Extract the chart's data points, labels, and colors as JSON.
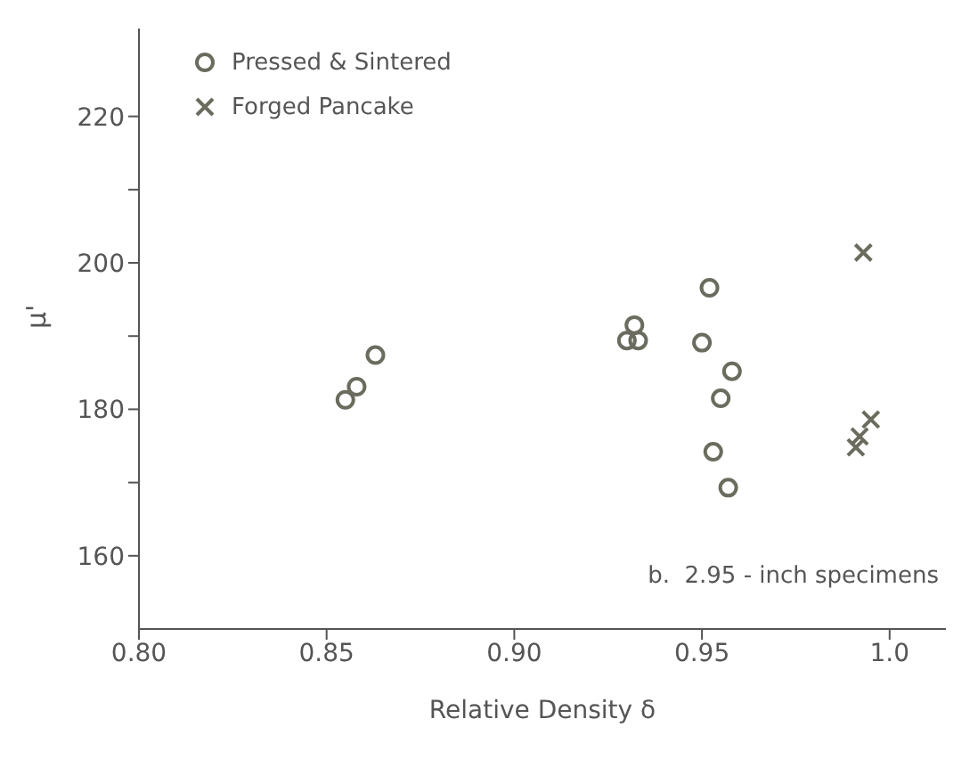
{
  "chart_data": {
    "type": "scatter",
    "xlabel": "Relative Density δ",
    "ylabel": "μ'",
    "series": [
      {
        "name": "Pressed & Sintered",
        "color": "#6b6b5e",
        "marker": "circle",
        "x": [
          0.855,
          0.858,
          0.863,
          0.93,
          0.932,
          0.933,
          0.952,
          0.95,
          0.958,
          0.955,
          0.953,
          0.957
        ],
        "values": [
          181.3,
          183.1,
          187.4,
          189.4,
          191.5,
          189.4,
          196.6,
          189.1,
          185.2,
          181.5,
          174.2,
          169.3
        ]
      },
      {
        "name": "Forged Pancake",
        "color": "#6b6b5e",
        "marker": "cross",
        "x": [
          0.993,
          0.995,
          0.992,
          0.991
        ],
        "values": [
          201.4,
          178.6,
          176.3,
          174.8
        ]
      }
    ],
    "xlim": [
      0.8,
      1.015
    ],
    "xticks": [
      {
        "value": 0.8,
        "label": "0.80"
      },
      {
        "value": 0.85,
        "label": "0.85"
      },
      {
        "value": 0.9,
        "label": "0.90"
      },
      {
        "value": 0.95,
        "label": "0.95"
      },
      {
        "value": 1.0,
        "label": "1.0"
      }
    ],
    "ylim": [
      150,
      232
    ],
    "yticks": [
      160,
      {
        "value": 170,
        "label": null
      },
      180,
      {
        "value": 190,
        "label": null
      },
      200,
      {
        "value": 210,
        "label": null
      },
      220
    ],
    "grid": false,
    "legend": "top left",
    "annotations": [
      "b.  2.95 - inch specimens"
    ]
  }
}
